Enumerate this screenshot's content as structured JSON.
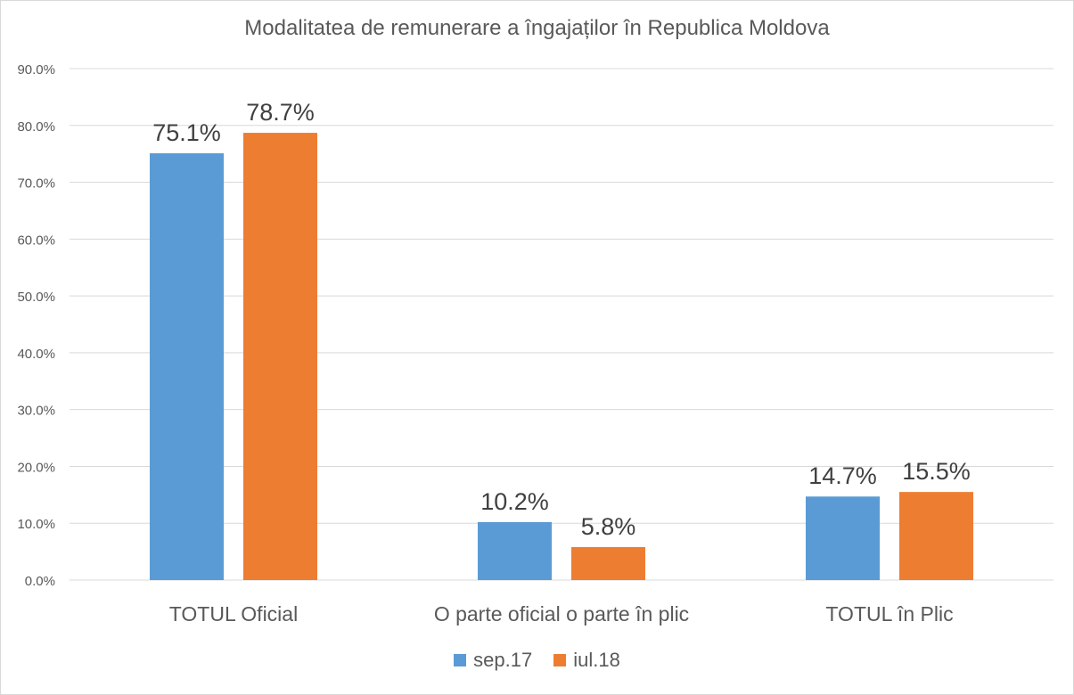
{
  "chart_data": {
    "type": "bar",
    "title": "Modalitatea de remunerare a îngajaților în Republica Moldova",
    "categories": [
      "TOTUL Oficial",
      "O parte oficial o parte în plic",
      "TOTUL în Plic"
    ],
    "series": [
      {
        "name": "sep.17",
        "color": "#5b9bd5",
        "values": [
          75.1,
          10.2,
          14.7
        ],
        "labels": [
          "75.1%",
          "10.2%",
          "14.7%"
        ]
      },
      {
        "name": "iul.18",
        "color": "#ed7d31",
        "values": [
          78.7,
          5.8,
          15.5
        ],
        "labels": [
          "78.7%",
          "5.8%",
          "15.5%"
        ]
      }
    ],
    "ylim": [
      0,
      90
    ],
    "yticks": [
      0,
      10,
      20,
      30,
      40,
      50,
      60,
      70,
      80,
      90
    ],
    "ytick_labels": [
      "0.0%",
      "10.0%",
      "20.0%",
      "30.0%",
      "40.0%",
      "50.0%",
      "60.0%",
      "70.0%",
      "80.0%",
      "90.0%"
    ],
    "grid": true,
    "legend_position": "bottom"
  }
}
